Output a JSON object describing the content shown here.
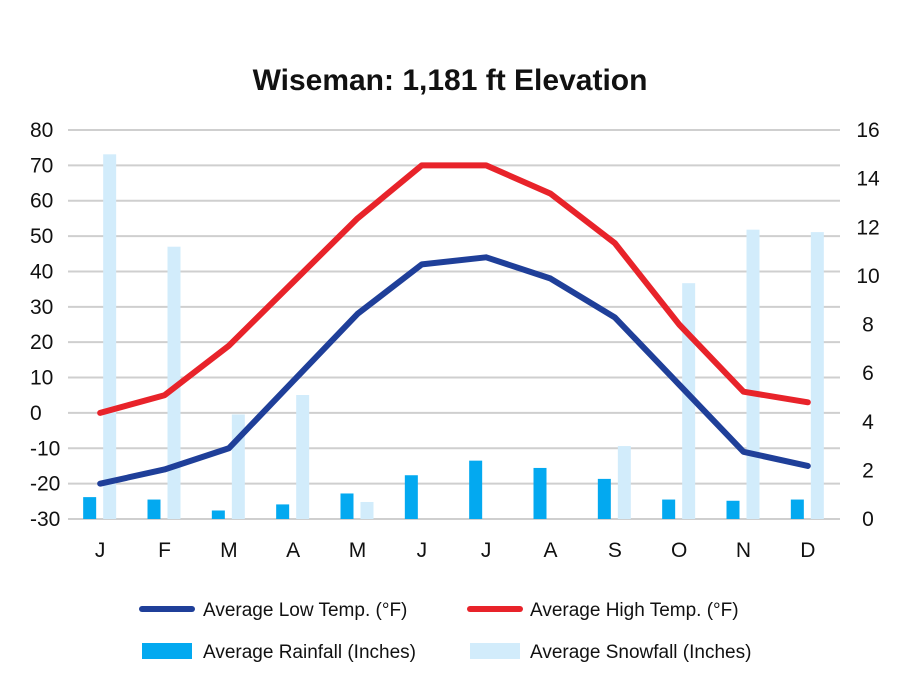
{
  "chart_data": {
    "type": "line",
    "title": "Wiseman: 1,181 ft Elevation",
    "categories": [
      "J",
      "F",
      "M",
      "A",
      "M",
      "J",
      "J",
      "A",
      "S",
      "O",
      "N",
      "D"
    ],
    "y_left": {
      "ticks": [
        80,
        70,
        60,
        50,
        40,
        30,
        20,
        10,
        0,
        -10,
        -20,
        -30
      ],
      "ylim": [
        -30,
        80
      ]
    },
    "y_right": {
      "ticks": [
        16,
        14,
        12,
        10,
        8,
        6,
        4,
        2,
        0
      ],
      "ylim": [
        0,
        16
      ]
    },
    "grid": true,
    "legend_position": "bottom",
    "series": [
      {
        "name": "Average Low Temp. (°F)",
        "kind": "line",
        "axis": "left",
        "color": "#1f3f99",
        "values": [
          -20,
          -16,
          -10,
          9,
          28,
          42,
          44,
          38,
          27,
          8,
          -11,
          -15
        ]
      },
      {
        "name": "Average High Temp. (°F)",
        "kind": "line",
        "axis": "left",
        "color": "#e8232a",
        "values": [
          0,
          5,
          19,
          37,
          55,
          70,
          70,
          62,
          48,
          25,
          6,
          3
        ]
      },
      {
        "name": "Average Rainfall (Inches)",
        "kind": "bar",
        "axis": "right",
        "color": "#03a9f0",
        "values": [
          0.9,
          0.8,
          0.35,
          0.6,
          1.05,
          1.8,
          2.4,
          2.1,
          1.65,
          0.8,
          0.75,
          0.8
        ]
      },
      {
        "name": "Average Snowfall (Inches)",
        "kind": "bar",
        "axis": "right",
        "color": "#d2ecfb",
        "values": [
          15.0,
          11.2,
          4.3,
          5.1,
          0.7,
          0,
          0,
          0,
          3.0,
          9.7,
          11.9,
          11.8
        ]
      }
    ]
  }
}
